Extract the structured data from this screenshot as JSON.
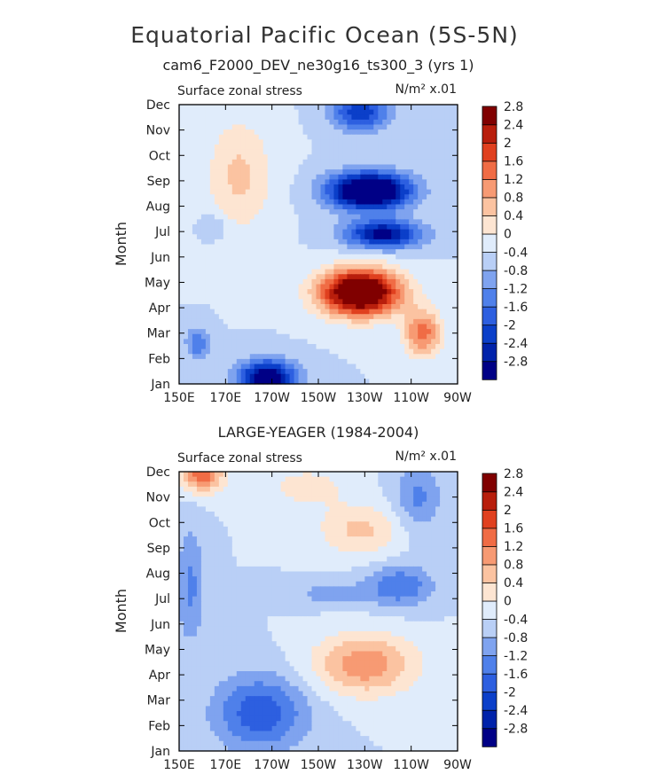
{
  "figure": {
    "title": "Equatorial Pacific Ocean (5S-5N)"
  },
  "chart_data": [
    {
      "type": "heatmap",
      "title": "cam6_F2000_DEV_ne30g16_ts300_3 (yrs 1)",
      "left_label": "Surface zonal stress",
      "right_label": "N/m² x.01",
      "ylabel": "Month",
      "xlabel": "",
      "x_ticks": [
        "150E",
        "170E",
        "170W",
        "150W",
        "130W",
        "110W",
        "90W"
      ],
      "y_ticks": [
        "Jan",
        "Feb",
        "Mar",
        "Apr",
        "May",
        "Jun",
        "Jul",
        "Aug",
        "Sep",
        "Oct",
        "Nov",
        "Dec"
      ],
      "xlim": [
        150,
        270
      ],
      "ylim": [
        "Jan",
        "Dec"
      ],
      "colorbar_levels": [
        "-2.8",
        "-2.4",
        "-2",
        "-1.6",
        "-1.2",
        "-0.8",
        "-0.4",
        "0",
        "0.4",
        "0.8",
        "1.2",
        "1.6",
        "2",
        "2.4",
        "2.8"
      ],
      "features": [
        {
          "lon": 228,
          "month": 3.6,
          "amp": 4.2,
          "slon": 17,
          "smon": 0.9
        },
        {
          "lon": 232,
          "month": 7.6,
          "amp": -4.0,
          "slon": 17,
          "smon": 0.7
        },
        {
          "lon": 238,
          "month": 5.9,
          "amp": -2.6,
          "slon": 16,
          "smon": 0.55
        },
        {
          "lon": 188,
          "month": 0.2,
          "amp": -3.2,
          "slon": 12,
          "smon": 0.7
        },
        {
          "lon": 158,
          "month": 1.6,
          "amp": -1.2,
          "slon": 5,
          "smon": 0.6
        },
        {
          "lon": 228,
          "month": 10.7,
          "amp": -2.0,
          "slon": 12,
          "smon": 0.7
        },
        {
          "lon": 176,
          "month": 8.2,
          "amp": 0.9,
          "slon": 14,
          "smon": 2.2
        },
        {
          "lon": 255,
          "month": 2.0,
          "amp": 1.8,
          "slon": 8,
          "smon": 0.9
        },
        {
          "lon": 165,
          "month": 6.2,
          "amp": -0.5,
          "slon": 6,
          "smon": 0.5
        }
      ]
    },
    {
      "type": "heatmap",
      "title": "LARGE-YEAGER (1984-2004)",
      "left_label": "Surface zonal stress",
      "right_label": "N/m² x.01",
      "ylabel": "Month",
      "xlabel": "",
      "x_ticks": [
        "150E",
        "170E",
        "170W",
        "150W",
        "130W",
        "110W",
        "90W"
      ],
      "y_ticks": [
        "Jan",
        "Feb",
        "Mar",
        "Apr",
        "May",
        "Jun",
        "Jul",
        "Aug",
        "Sep",
        "Oct",
        "Nov",
        "Dec"
      ],
      "xlim": [
        150,
        270
      ],
      "ylim": [
        "Jan",
        "Dec"
      ],
      "colorbar_levels": [
        "-2.8",
        "-2.4",
        "-2",
        "-1.6",
        "-1.2",
        "-0.8",
        "-0.4",
        "0",
        "0.4",
        "0.8",
        "1.2",
        "1.6",
        "2",
        "2.4",
        "2.8"
      ],
      "features": [
        {
          "lon": 230,
          "month": 3.4,
          "amp": 1.5,
          "slon": 22,
          "smon": 1.2
        },
        {
          "lon": 228,
          "month": 8.7,
          "amp": 0.9,
          "slon": 18,
          "smon": 1.0
        },
        {
          "lon": 160,
          "month": 10.9,
          "amp": 1.9,
          "slon": 9,
          "smon": 0.7
        },
        {
          "lon": 205,
          "month": 10.4,
          "amp": 0.6,
          "slon": 18,
          "smon": 0.8
        },
        {
          "lon": 185,
          "month": 1.5,
          "amp": -1.5,
          "slon": 20,
          "smon": 1.5
        },
        {
          "lon": 245,
          "month": 6.5,
          "amp": -1.2,
          "slon": 14,
          "smon": 0.8
        },
        {
          "lon": 253,
          "month": 10.0,
          "amp": -0.9,
          "slon": 10,
          "smon": 1.4
        },
        {
          "lon": 155,
          "month": 6.5,
          "amp": -0.9,
          "slon": 6,
          "smon": 2.3
        },
        {
          "lon": 215,
          "month": 6.2,
          "amp": -0.6,
          "slon": 16,
          "smon": 0.5
        }
      ]
    }
  ],
  "palette": [
    "#000086",
    "#0022aa",
    "#0b3fc9",
    "#2d5fe0",
    "#4f80ea",
    "#7fa3ef",
    "#b9cff6",
    "#e0ecfb",
    "#fde5d2",
    "#fbc3a1",
    "#f79a73",
    "#f06c45",
    "#e0401f",
    "#b81e0c",
    "#800000"
  ]
}
